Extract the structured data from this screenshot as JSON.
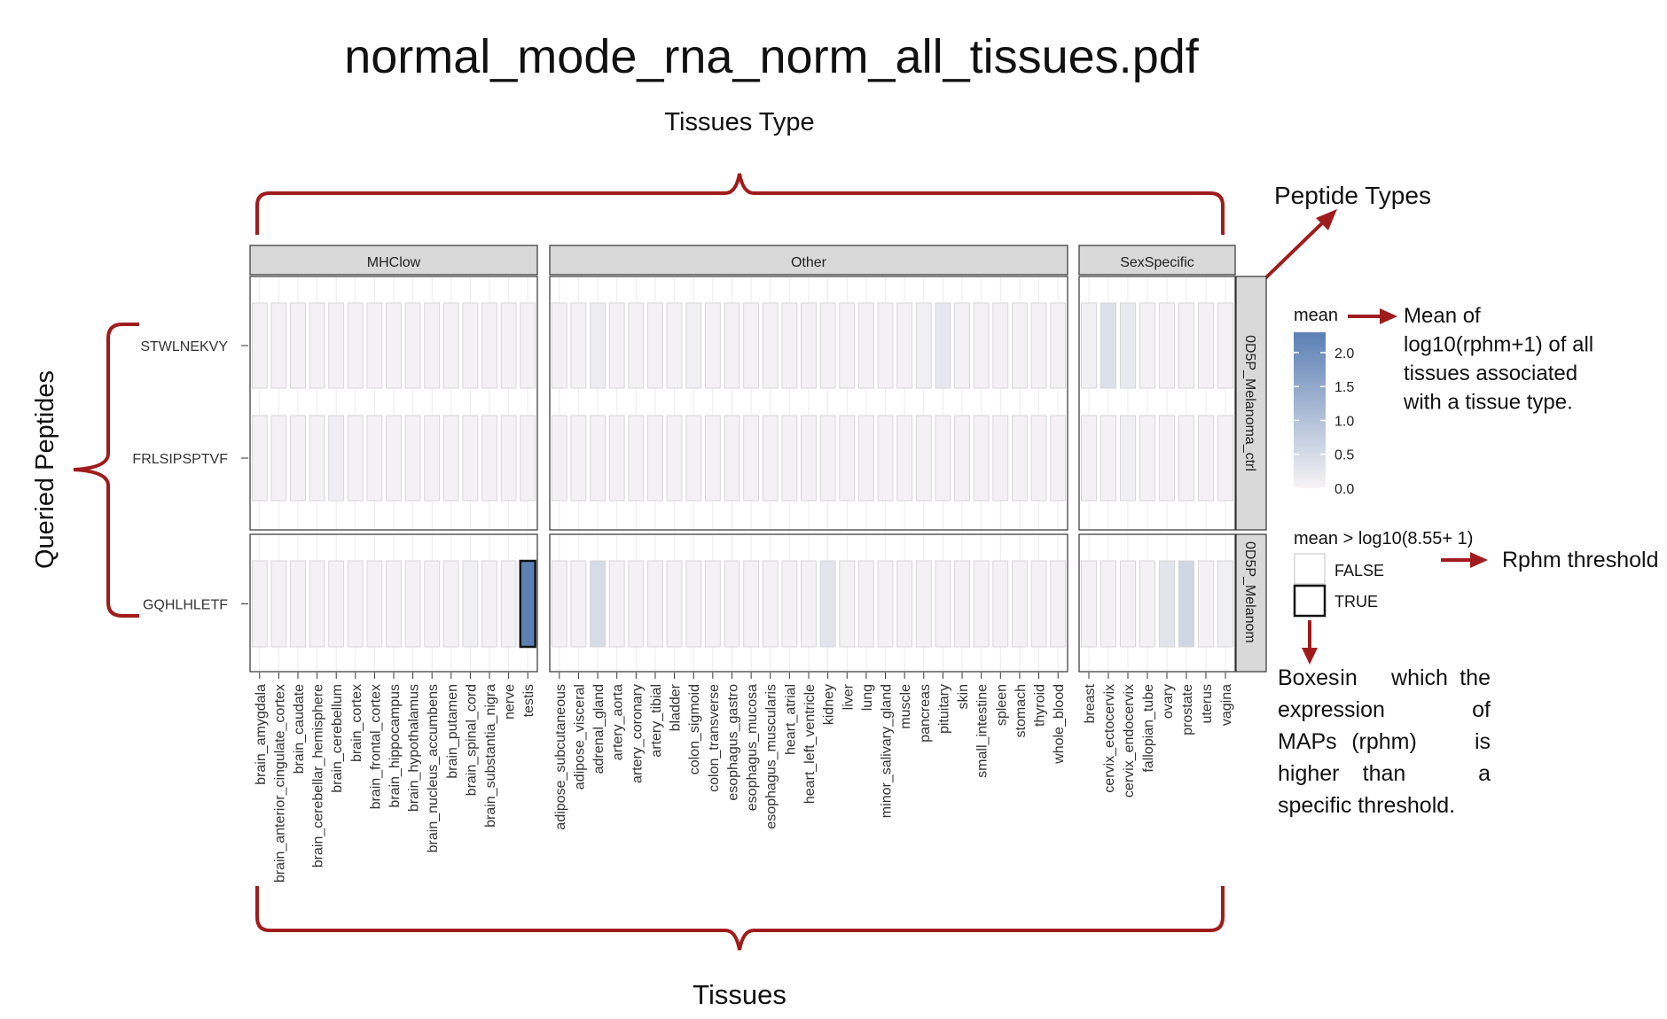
{
  "page_title": "normal_mode_rna_norm_all_tissues.pdf",
  "annotations": {
    "tissues_type": "Tissues Type",
    "peptide_types": "Peptide Types",
    "queried_peptides": "Queried Peptides",
    "tissues": "Tissues",
    "mean_note": [
      "Mean of",
      "log10(rphm+1) of all",
      "tissues associated",
      "with a tissue type."
    ],
    "threshold_note": "Rphm threshold",
    "boxes_note": [
      [
        "Boxes",
        "in",
        "which",
        "the"
      ],
      [
        "expression",
        "of"
      ],
      [
        "MAPs",
        "(rphm)",
        "is"
      ],
      [
        "higher",
        "than",
        "a"
      ],
      [
        "specific threshold."
      ]
    ]
  },
  "colors": {
    "accent": "#a01c1c",
    "strip": "#d9d9d9",
    "high": "#5b80b4",
    "low": "#f7f4f5"
  },
  "chart_data": {
    "type": "heatmap",
    "title": "",
    "xlabel": "",
    "ylabel": "",
    "col_facets": [
      {
        "name": "MHClow",
        "tissues": [
          "brain_amygdala",
          "brain_anterior_cingulate_cortex",
          "brain_caudate",
          "brain_cerebellar_hemisphere",
          "brain_cerebellum",
          "brain_cortex",
          "brain_frontal_cortex",
          "brain_hippocampus",
          "brain_hypothalamus",
          "brain_nucleus_accumbens",
          "brain_putamen",
          "brain_spinal_cord",
          "brain_substantia_nigra",
          "nerve",
          "testis"
        ]
      },
      {
        "name": "Other",
        "tissues": [
          "adipose_subcutaneous",
          "adipose_visceral",
          "adrenal_gland",
          "artery_aorta",
          "artery_coronary",
          "artery_tibial",
          "bladder",
          "colon_sigmoid",
          "colon_transverse",
          "esophagus_gastro",
          "esophagus_mucosa",
          "esophagus_muscularis",
          "heart_atrial",
          "heart_left_ventricle",
          "kidney",
          "liver",
          "lung",
          "minor_salivary_gland",
          "muscle",
          "pancreas",
          "pituitary",
          "skin",
          "small_intestine",
          "spleen",
          "stomach",
          "thyroid",
          "whole_blood"
        ]
      },
      {
        "name": "SexSpecific",
        "tissues": [
          "breast",
          "cervix_ectocervix",
          "cervix_endocervix",
          "fallopian_tube",
          "ovary",
          "prostate",
          "uterus",
          "vagina"
        ]
      }
    ],
    "row_facets": [
      {
        "name": "0D5P_Melanoma_ctrl",
        "peptides": [
          "STWLNEKVY",
          "FRLSIPSPTVF"
        ]
      },
      {
        "name": "0D5P_Melanom",
        "peptides": [
          "GQHLHLETF"
        ]
      }
    ],
    "values": {
      "STWLNEKVY": [
        0.05,
        0.05,
        0.05,
        0.05,
        0.05,
        0.05,
        0.05,
        0.05,
        0.05,
        0.05,
        0.05,
        0.05,
        0.05,
        0.05,
        0.05,
        0.05,
        0.05,
        0.15,
        0.05,
        0.05,
        0.05,
        0.05,
        0.1,
        0.05,
        0.05,
        0.05,
        0.05,
        0.05,
        0.05,
        0.05,
        0.05,
        0.05,
        0.05,
        0.05,
        0.1,
        0.25,
        0.05,
        0.05,
        0.05,
        0.05,
        0.05,
        0.05,
        0.1,
        0.4,
        0.2,
        0.05,
        0.05,
        0.05,
        0.05,
        0.05
      ],
      "FRLSIPSPTVF": [
        0.05,
        0.05,
        0.05,
        0.05,
        0.12,
        0.05,
        0.05,
        0.05,
        0.05,
        0.05,
        0.05,
        0.05,
        0.05,
        0.05,
        0.05,
        0.05,
        0.05,
        0.05,
        0.05,
        0.05,
        0.05,
        0.05,
        0.05,
        0.05,
        0.05,
        0.05,
        0.05,
        0.05,
        0.05,
        0.05,
        0.05,
        0.05,
        0.05,
        0.05,
        0.05,
        0.05,
        0.05,
        0.05,
        0.05,
        0.05,
        0.05,
        0.05,
        0.05,
        0.05,
        0.1,
        0.05,
        0.05,
        0.05,
        0.05,
        0.05
      ],
      "GQHLHLETF": [
        0.05,
        0.05,
        0.05,
        0.05,
        0.05,
        0.05,
        0.05,
        0.05,
        0.05,
        0.05,
        0.05,
        0.1,
        0.05,
        0.05,
        2.3,
        0.05,
        0.05,
        0.5,
        0.05,
        0.05,
        0.05,
        0.05,
        0.05,
        0.05,
        0.05,
        0.05,
        0.05,
        0.05,
        0.05,
        0.3,
        0.05,
        0.05,
        0.05,
        0.05,
        0.05,
        0.05,
        0.05,
        0.05,
        0.05,
        0.05,
        0.05,
        0.05,
        0.05,
        0.05,
        0.05,
        0.05,
        0.3,
        0.6,
        0.05,
        0.1
      ]
    },
    "threshold_true": {
      "GQHLHLETF": [
        "testis"
      ]
    },
    "fill_legend": {
      "title": "mean",
      "ticks": [
        "0.0",
        "0.5",
        "1.0",
        "1.5",
        "2.0"
      ],
      "range": [
        0,
        2.3
      ]
    },
    "outline_legend": {
      "title": "mean > log10(8.55+ 1)",
      "entries": [
        "FALSE",
        "TRUE"
      ]
    }
  }
}
